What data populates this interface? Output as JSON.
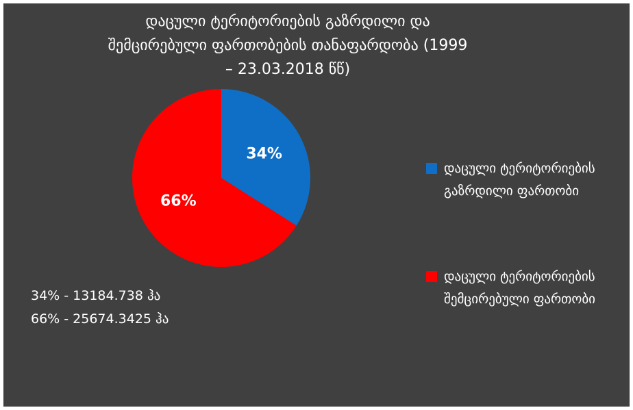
{
  "chart_data": {
    "type": "pie",
    "title": "დაცული ტერიტორიების გაზრდილი და შემცირებული ფართობების თანაფარდობა (1999 – 23.03.2018 წწ)",
    "categories": [
      "დაცული ტერიტორიების გაზრდილი ფართობი",
      "დაცული ტერიტორიების შემცირებული ფართობი"
    ],
    "values": [
      34,
      66
    ],
    "value_labels": [
      "34%",
      "66%"
    ],
    "colors": [
      "#0f6fc6",
      "#ff0000"
    ],
    "legend": "right",
    "annotations": [
      "34% - 13184.738 ჰა",
      "66% - 25674.3425 ჰა"
    ]
  }
}
